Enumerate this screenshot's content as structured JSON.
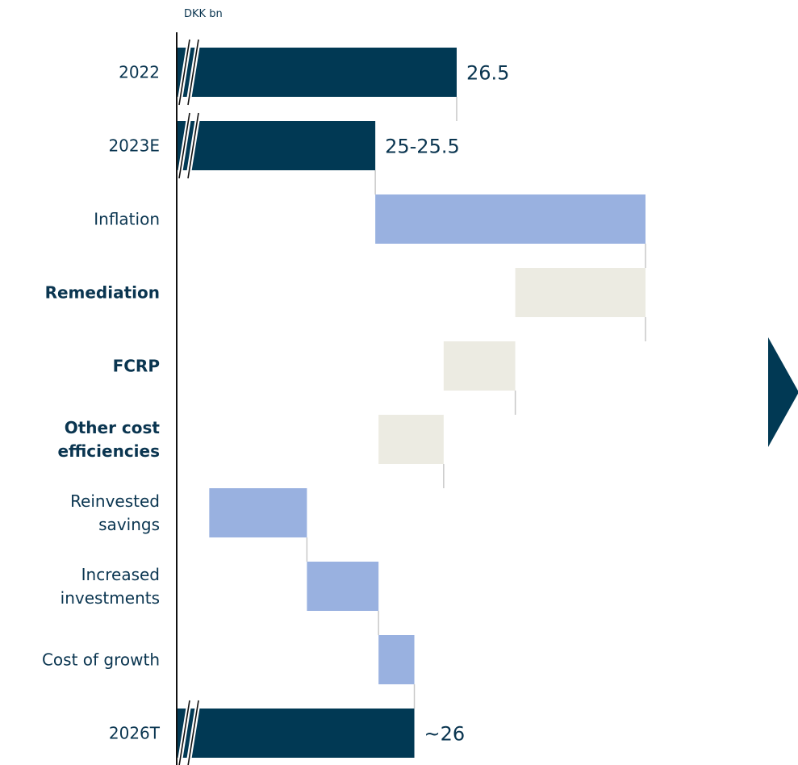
{
  "unit_label": "DKK bn",
  "colors": {
    "total": "#013954",
    "increase": "#99b1e0",
    "decrease": "#ecebe2",
    "text": "#0a3550",
    "connector": "#c8c8c8",
    "axis": "#111111"
  },
  "chart_data": {
    "type": "bar",
    "subtype": "waterfall",
    "orientation": "horizontal",
    "axis_break": true,
    "categories": [
      "2022",
      "2023E",
      "Inflation",
      "Remediation",
      "FCRP",
      "Other cost efficiencies",
      "Reinvested savings",
      "Increased investments",
      "Cost of growth",
      "2026T"
    ],
    "label_lines": [
      [
        "2022"
      ],
      [
        "2023E"
      ],
      [
        "Inflation"
      ],
      [
        "Remediation"
      ],
      [
        "FCRP"
      ],
      [
        "Other cost",
        "efficiencies"
      ],
      [
        "Reinvested",
        "savings"
      ],
      [
        "Increased",
        "investments"
      ],
      [
        "Cost of growth"
      ],
      [
        "2026T"
      ]
    ],
    "bold": [
      false,
      false,
      false,
      true,
      true,
      true,
      false,
      false,
      false,
      false
    ],
    "kind": [
      "total",
      "total",
      "increase",
      "decrease",
      "decrease",
      "decrease",
      "increase",
      "increase",
      "increase",
      "total"
    ],
    "start": [
      null,
      null,
      25.25,
      27.4,
      26.3,
      25.3,
      22.7,
      24.2,
      25.3,
      null
    ],
    "end": [
      26.5,
      25.25,
      29.4,
      29.4,
      27.4,
      26.3,
      24.2,
      25.3,
      25.85,
      25.85
    ],
    "value_labels": [
      "26.5",
      "25-25.5",
      "",
      "",
      "",
      "",
      "",
      "",
      "",
      "~26"
    ],
    "xlim": [
      22.2,
      29.4
    ]
  }
}
